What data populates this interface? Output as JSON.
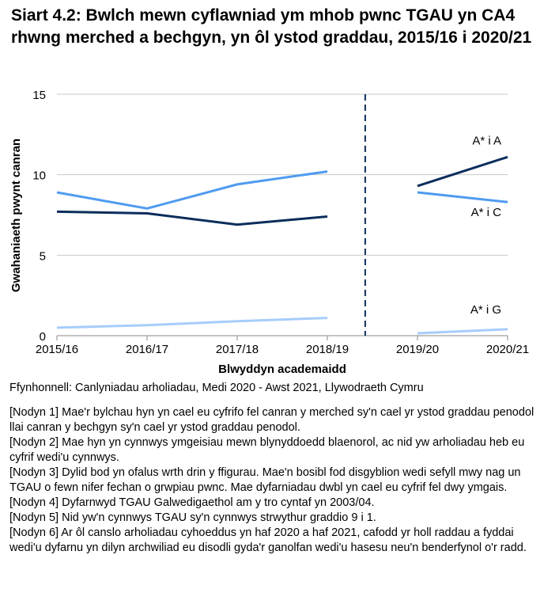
{
  "title": "Siart 4.2: Bwlch mewn cyflawniad ym mhob pwnc TGAU yn CA4 rhwng merched a bechgyn, yn ôl ystod graddau, 2015/16 i 2020/21",
  "chart_data": {
    "type": "line",
    "categories": [
      "2015/16",
      "2016/17",
      "2017/18",
      "2018/19",
      "2019/20",
      "2020/21"
    ],
    "xlabel": "Blwyddyn academaidd",
    "ylabel": "Gwahaniaeth pwynt canran",
    "ylim": [
      0,
      15
    ],
    "yticks": [
      "0",
      "5",
      "10",
      "15"
    ],
    "grid": true,
    "series": [
      {
        "name": "A* i A",
        "color": "#0b2d5c",
        "values": [
          7.7,
          7.6,
          6.9,
          7.4,
          9.3,
          11.1
        ]
      },
      {
        "name": "A* i C",
        "color": "#4f9bf0",
        "values": [
          8.9,
          7.9,
          9.4,
          10.2,
          8.9,
          8.3
        ]
      },
      {
        "name": "A* i G",
        "color": "#a6cdfb",
        "values": [
          0.5,
          0.65,
          0.9,
          1.1,
          0.15,
          0.4
        ]
      }
    ],
    "break_between": [
      "2018/19",
      "2019/20"
    ]
  },
  "source": "Ffynhonnell: Canlyniadau arholiadau, Medi 2020 - Awst 2021, Llywodraeth Cymru",
  "notes": [
    "[Nodyn 1] Mae'r bylchau hyn yn cael eu cyfrifo fel canran y merched sy'n cael yr ystod graddau penodol llai canran y bechgyn sy'n cael yr ystod graddau penodol.",
    "[Nodyn 2] Mae hyn yn cynnwys ymgeisiau mewn blynyddoedd blaenorol, ac nid yw arholiadau heb eu cyfrif wedi'u cynnwys.",
    "[Nodyn 3] Dylid bod yn ofalus wrth drin y ffigurau. Mae'n bosibl fod disgyblion wedi sefyll mwy nag un TGAU o fewn nifer fechan o grwpiau pwnc. Mae dyfarniadau dwbl yn cael eu cyfrif fel dwy ymgais.",
    "[Nodyn 4] Dyfarnwyd TGAU Galwedigaethol am y tro cyntaf yn 2003/04.",
    "[Nodyn 5] Nid yw'n cynnwys TGAU sy'n cynnwys strwythur graddio 9 i 1.",
    "[Nodyn 6] Ar ôl canslo arholiadau cyhoeddus yn haf 2020 a haf 2021, cafodd yr holl raddau a fyddai wedi'u dyfarnu yn dilyn archwiliad eu disodli gyda'r ganolfan wedi'u hasesu neu'n benderfynol o'r radd."
  ]
}
